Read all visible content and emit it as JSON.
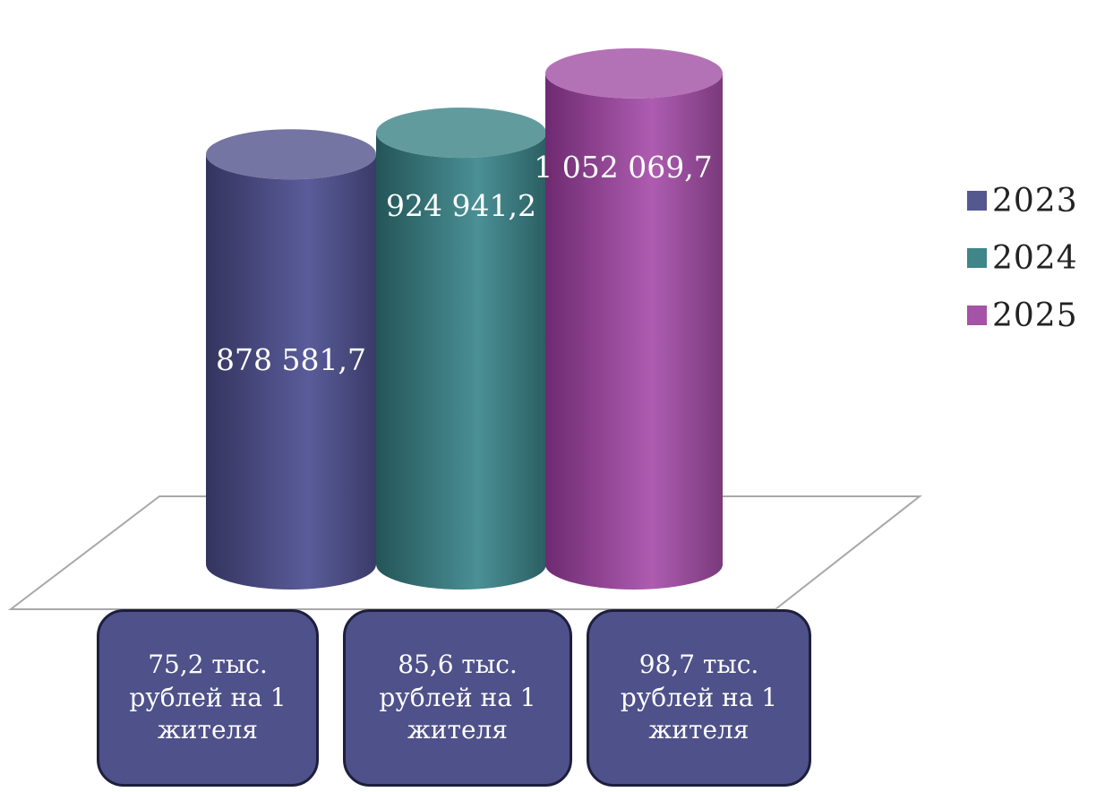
{
  "chart_data": {
    "type": "bar",
    "categories": [
      "2023",
      "2024",
      "2025"
    ],
    "values": [
      878581.7,
      924941.2,
      1052069.7
    ],
    "value_labels": [
      "878 581,7",
      "924 941,2",
      "1 052 069,7"
    ],
    "title": "",
    "xlabel": "",
    "ylabel": "",
    "ylim": [
      0,
      1100000
    ],
    "grid": false,
    "legend_position": "right",
    "colors": [
      "#55578f",
      "#3f8589",
      "#a453a6"
    ]
  },
  "legend": {
    "items": [
      {
        "label": "2023",
        "color": "#55578f"
      },
      {
        "label": "2024",
        "color": "#3f8589"
      },
      {
        "label": "2025",
        "color": "#a453a6"
      }
    ]
  },
  "notes": [
    {
      "text": "75,2 тыс. рублей на 1 жителя"
    },
    {
      "text": "85,6 тыс. рублей на 1 жителя"
    },
    {
      "text": "98,7 тыс. рублей на 1 жителя"
    }
  ]
}
